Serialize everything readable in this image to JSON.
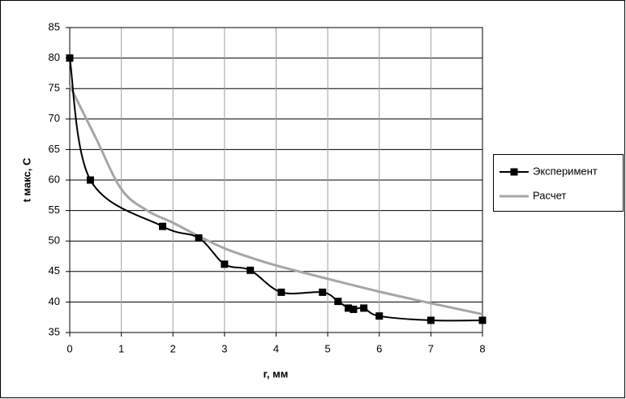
{
  "chart_data": {
    "type": "line",
    "xlabel": "r, мм",
    "ylabel": "t макс, С",
    "xlim": [
      0,
      8
    ],
    "xticks": [
      0,
      1,
      2,
      3,
      4,
      5,
      6,
      7,
      8
    ],
    "ylim": [
      35,
      85
    ],
    "yticks": [
      35,
      40,
      45,
      50,
      55,
      60,
      65,
      70,
      75,
      80,
      85
    ],
    "grid": true,
    "legend": "right",
    "series": [
      {
        "name": "Эксперимент",
        "color": "#000000",
        "marker": "square",
        "x": [
          0,
          0.4,
          1.8,
          2.5,
          3,
          3.5,
          4.1,
          4.9,
          5.2,
          5.4,
          5.5,
          5.7,
          6,
          7,
          8
        ],
        "values": [
          80,
          60,
          52.4,
          50.5,
          46.2,
          45.2,
          41.6,
          41.6,
          40.1,
          39,
          38.8,
          39,
          37.7,
          37,
          37
        ]
      },
      {
        "name": "Расчет",
        "color": "#a6a6a6",
        "x": [
          0,
          0.5,
          1,
          1.5,
          2,
          2.5,
          3,
          3.5,
          4,
          5,
          6,
          7,
          8
        ],
        "values": [
          75.5,
          67,
          58.5,
          55,
          53,
          50.8,
          48.8,
          47.3,
          46,
          43.8,
          41.7,
          39.8,
          38
        ]
      }
    ]
  }
}
